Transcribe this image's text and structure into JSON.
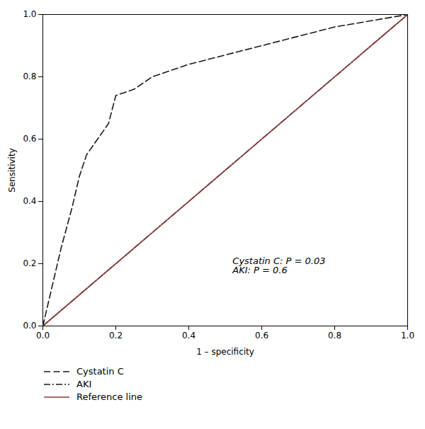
{
  "chart_data": {
    "type": "line",
    "xlabel": "1 – specificity",
    "ylabel": "Sensitivity",
    "xlim": [
      0,
      1.0
    ],
    "ylim": [
      0,
      1.0
    ],
    "xticks": [
      {
        "value": 0,
        "label": "0.0"
      },
      0.2,
      0.4,
      0.6,
      0.8,
      {
        "value": 1.0,
        "label": "1.0"
      }
    ],
    "yticks": [
      {
        "value": 0,
        "label": "0.0"
      },
      0.2,
      0.4,
      0.6,
      0.8,
      {
        "value": 1.0,
        "label": "1.0"
      }
    ],
    "annotation": "Cystatin C: P = 0.03\nAKI: P = 0.6",
    "legend": "bottom",
    "grid": false,
    "series": [
      {
        "name": "Cystatin C",
        "color": "#1a1a1a",
        "line_style": "dashed",
        "x": [
          0.0,
          0.02,
          0.05,
          0.08,
          0.1,
          0.12,
          0.15,
          0.18,
          0.2,
          0.25,
          0.3,
          0.4,
          0.5,
          0.6,
          0.7,
          0.8,
          0.9,
          1.0
        ],
        "values": [
          0.0,
          0.1,
          0.25,
          0.38,
          0.48,
          0.55,
          0.6,
          0.65,
          0.74,
          0.76,
          0.8,
          0.84,
          0.87,
          0.9,
          0.93,
          0.96,
          0.98,
          1.0
        ]
      },
      {
        "name": "AKI",
        "color": "#1a1a1a",
        "line_style": "dashdot",
        "x": [
          0.0,
          0.02,
          0.05,
          0.08,
          0.1,
          0.15,
          0.2,
          0.3,
          0.4,
          0.5,
          0.6,
          0.7,
          0.8,
          0.9,
          1.0
        ],
        "values": [
          0.0,
          0.02,
          0.05,
          0.08,
          0.1,
          0.15,
          0.2,
          0.3,
          0.4,
          0.5,
          0.6,
          0.7,
          0.8,
          0.9,
          1.0
        ]
      },
      {
        "name": "Reference line",
        "color": "#8B3A3A",
        "line_style": "solid",
        "x": [
          0.0,
          1.0
        ],
        "values": [
          0.0,
          1.0
        ]
      }
    ]
  }
}
